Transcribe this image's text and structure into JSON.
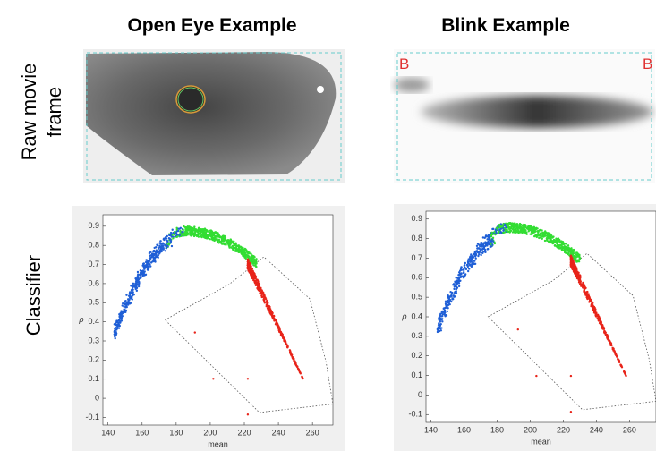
{
  "headers": [
    "Open Eye Example",
    "Blink Example"
  ],
  "row_labels": {
    "raw": [
      "Raw movie",
      "frame"
    ],
    "classifier": "Classifier"
  },
  "frames": [
    {
      "marks": []
    },
    {
      "marks": [
        "B",
        "B"
      ]
    }
  ],
  "plots": [
    {
      "xlabel": "mean",
      "ylabel": "ρ",
      "xlim": [
        137,
        272
      ],
      "ylim": [
        -0.14,
        0.96
      ],
      "xticks": [
        140,
        160,
        180,
        200,
        220,
        240,
        260
      ],
      "yticks": [
        -0.1,
        0,
        0.1,
        0.2,
        0.3,
        0.4,
        0.5,
        0.6,
        0.7,
        0.8,
        0.9
      ]
    },
    {
      "xlabel": "mean",
      "ylabel": "ρ",
      "xlim": [
        137,
        276
      ],
      "ylim": [
        -0.14,
        0.94
      ],
      "xticks": [
        140,
        160,
        180,
        200,
        220,
        240,
        260
      ],
      "yticks": [
        -0.1,
        0,
        0.1,
        0.2,
        0.3,
        0.4,
        0.5,
        0.6,
        0.7,
        0.8,
        0.9
      ]
    }
  ]
}
